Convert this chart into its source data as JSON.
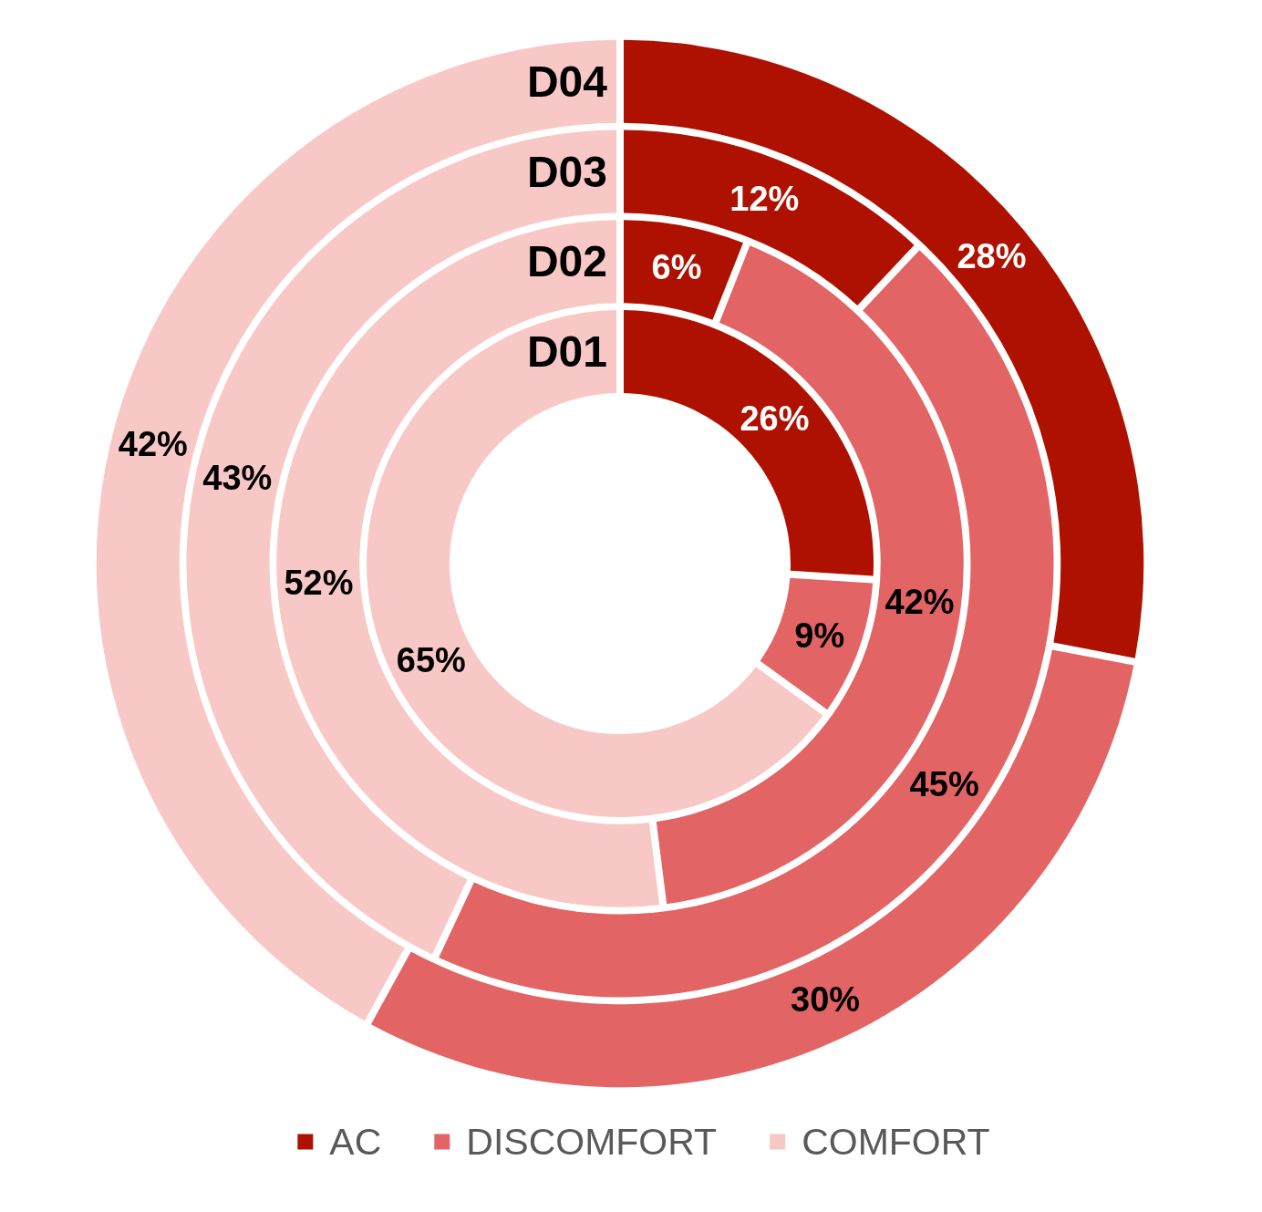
{
  "chart_data": {
    "type": "donut",
    "categories": [
      "AC",
      "DISCOMFORT",
      "COMFORT"
    ],
    "colors": [
      "#ae1100",
      "#e36464",
      "#f8c8c6"
    ],
    "series": [
      {
        "name": "D01",
        "values": [
          26,
          9,
          65
        ],
        "value_labels": [
          "26%",
          "9%",
          "65%"
        ]
      },
      {
        "name": "D02",
        "values": [
          6,
          42,
          52
        ],
        "value_labels": [
          "6%",
          "42%",
          "52%"
        ]
      },
      {
        "name": "D03",
        "values": [
          12,
          45,
          43
        ],
        "value_labels": [
          "12%",
          "45%",
          "43%"
        ]
      },
      {
        "name": "D04",
        "values": [
          28,
          30,
          42
        ],
        "value_labels": [
          "28%",
          "30%",
          "42%"
        ]
      }
    ],
    "legend": "bottom"
  }
}
